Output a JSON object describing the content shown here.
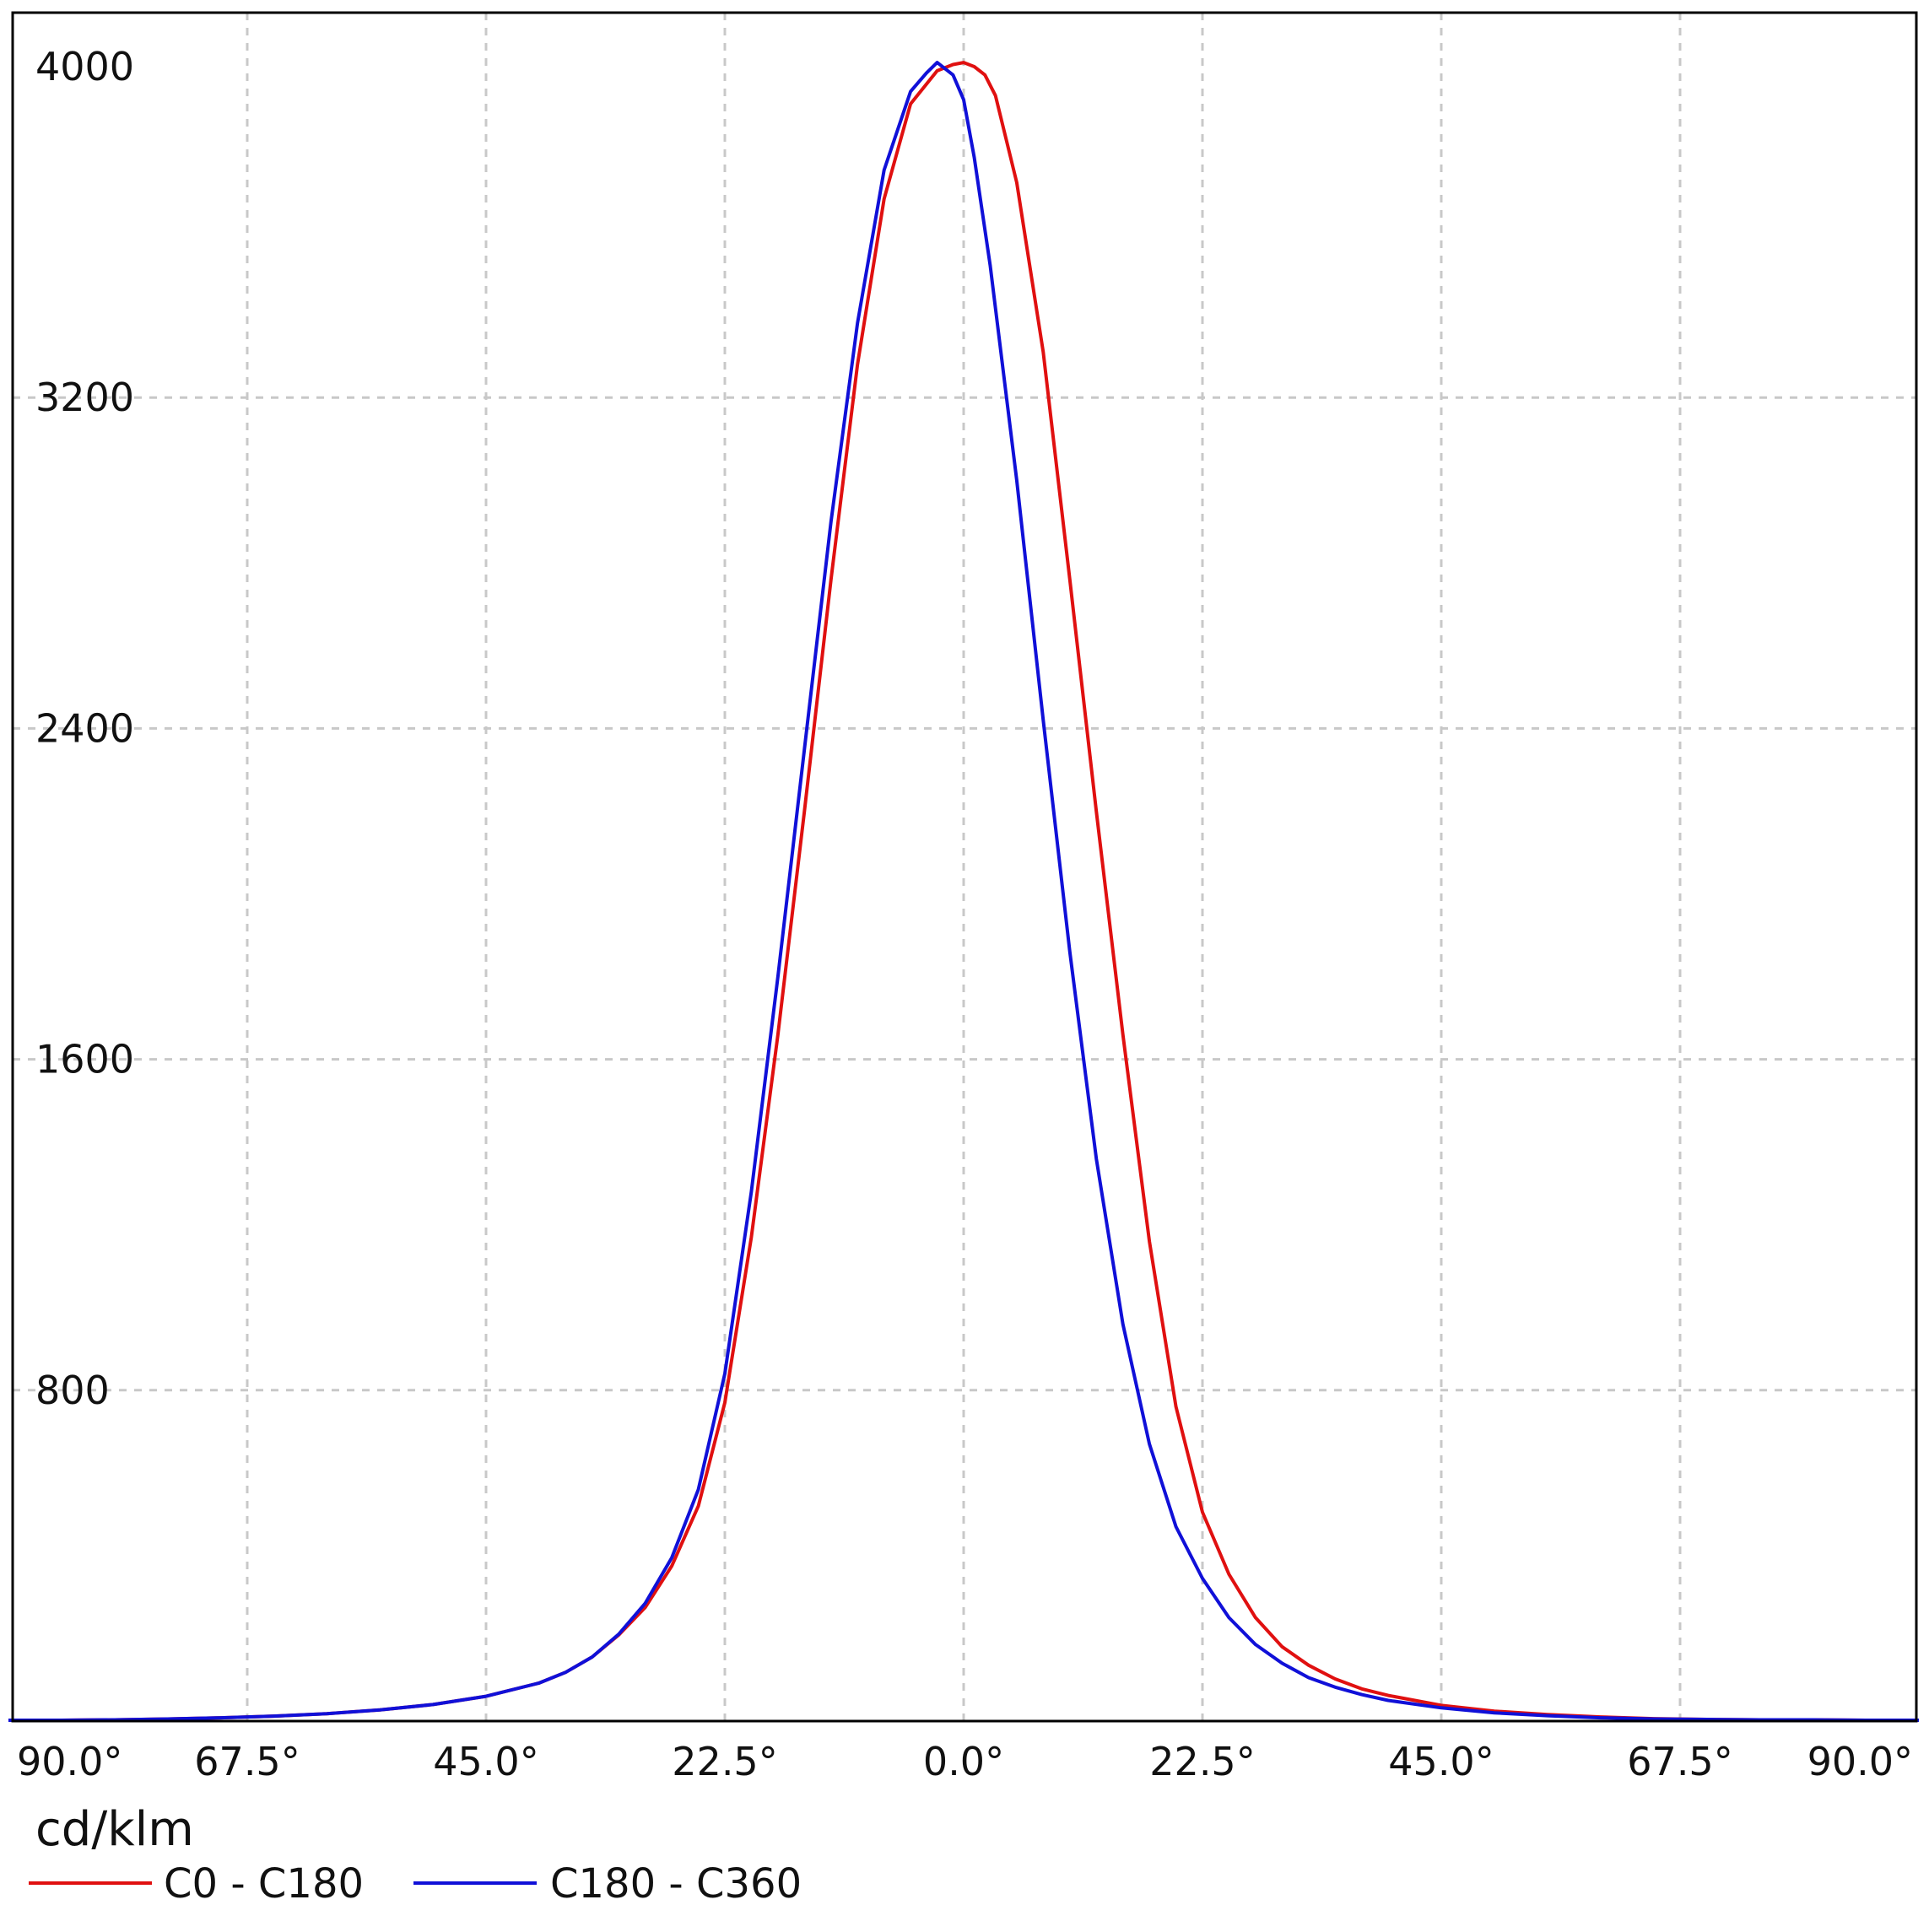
{
  "chart_data": {
    "type": "line",
    "unit_label": "cd/klm",
    "x_tick_labels": [
      "90.0°",
      "67.5°",
      "45.0°",
      "22.5°",
      "0.0°",
      "22.5°",
      "45.0°",
      "67.5°",
      "90.0°"
    ],
    "x_ticks": [
      -90,
      -67.5,
      -45,
      -22.5,
      0,
      22.5,
      45,
      67.5,
      90
    ],
    "y_tick_labels": [
      "800",
      "1600",
      "2400",
      "3200",
      "4000"
    ],
    "y_ticks": [
      800,
      1600,
      2400,
      3200,
      4000
    ],
    "xlim": [
      -90,
      90
    ],
    "ylim": [
      0,
      4000
    ],
    "grid": true,
    "legend_position": "bottom-left",
    "series": [
      {
        "name": "C0 - C180",
        "color": "#e01010",
        "x": [
          -90,
          -85,
          -80,
          -75,
          -70,
          -65,
          -60,
          -55,
          -50,
          -45,
          -40,
          -37.5,
          -35,
          -32.5,
          -30,
          -27.5,
          -25,
          -22.5,
          -20,
          -17.5,
          -15,
          -12.5,
          -10,
          -7.5,
          -5,
          -2.5,
          -1,
          0,
          1,
          2,
          3,
          5,
          7.5,
          10,
          12.5,
          15,
          17.5,
          20,
          22.5,
          25,
          27.5,
          30,
          32.5,
          35,
          37.5,
          40,
          45,
          50,
          55,
          60,
          65,
          70,
          75,
          80,
          85,
          90
        ],
        "y": [
          2,
          2,
          3,
          5,
          8,
          12,
          18,
          27,
          40,
          60,
          92,
          118,
          155,
          208,
          275,
          375,
          520,
          770,
          1170,
          1660,
          2200,
          2760,
          3280,
          3680,
          3910,
          3990,
          4005,
          4010,
          4000,
          3980,
          3930,
          3720,
          3310,
          2760,
          2200,
          1660,
          1160,
          760,
          505,
          355,
          250,
          180,
          135,
          102,
          78,
          62,
          38,
          24,
          16,
          10,
          6,
          4,
          3,
          3,
          2,
          2
        ]
      },
      {
        "name": "C180 - C360",
        "color": "#1010d8",
        "x": [
          -90,
          -85,
          -80,
          -75,
          -70,
          -65,
          -60,
          -55,
          -50,
          -45,
          -40,
          -37.5,
          -35,
          -32.5,
          -30,
          -27.5,
          -25,
          -22.5,
          -20,
          -17.5,
          -15,
          -12.5,
          -10,
          -7.5,
          -5,
          -3.5,
          -2.5,
          -1,
          0,
          1,
          2.5,
          5,
          7.5,
          10,
          12.5,
          15,
          17.5,
          20,
          22.5,
          25,
          27.5,
          30,
          32.5,
          35,
          37.5,
          40,
          45,
          50,
          55,
          60,
          65,
          70,
          75,
          80,
          85,
          90
        ],
        "y": [
          2,
          2,
          3,
          5,
          8,
          12,
          18,
          27,
          40,
          60,
          92,
          118,
          155,
          210,
          285,
          395,
          560,
          840,
          1280,
          1800,
          2350,
          2900,
          3380,
          3750,
          3940,
          3985,
          4010,
          3980,
          3920,
          3780,
          3520,
          3000,
          2420,
          1860,
          1360,
          960,
          670,
          470,
          345,
          250,
          185,
          140,
          105,
          82,
          64,
          50,
          32,
          20,
          13,
          8,
          5,
          4,
          3,
          3,
          2,
          2
        ]
      }
    ]
  }
}
